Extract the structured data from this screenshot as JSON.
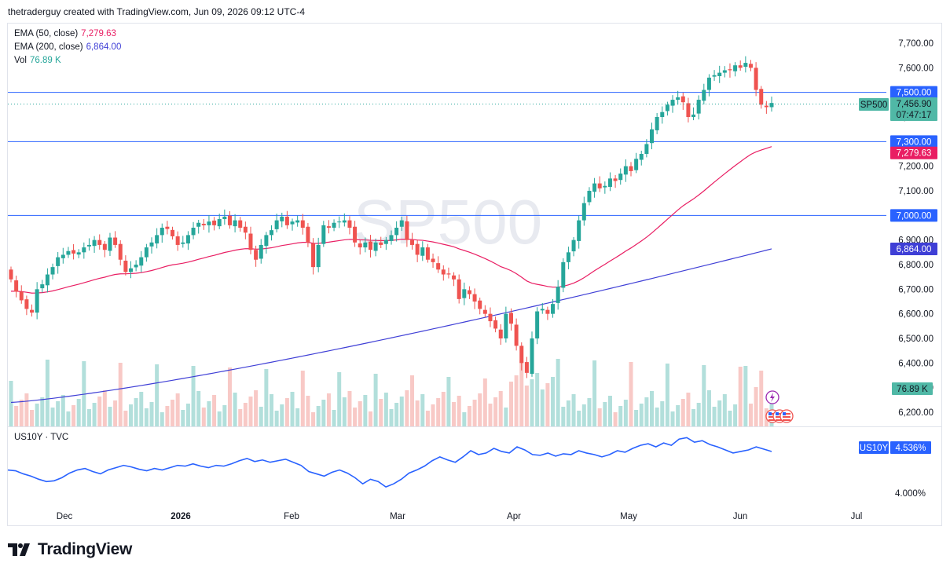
{
  "header": {
    "text": "thetraderguy created with TradingView.com, Jun 09, 2026 09:12 UTC-4"
  },
  "legend": {
    "ema50": {
      "label": "EMA (50, close)",
      "value": "7,279.63",
      "color": "#e91e63"
    },
    "ema200": {
      "label": "EMA (200, close)",
      "value": "6,864.00",
      "color": "#3f3fd6"
    },
    "vol": {
      "label": "Vol",
      "value": "76.89 K",
      "color": "#26a69a"
    }
  },
  "watermark": "SP500",
  "sub_legend": {
    "text": "US10Y · TVC"
  },
  "footer": {
    "brand": "TradingView"
  },
  "colors": {
    "up": "#26a69a",
    "down": "#ef5350",
    "vol_up": "#b2dfdb",
    "vol_down": "#f8c9c6",
    "hline": "#2962ff",
    "ema50": "#e91e63",
    "ema200": "#3f3fd6",
    "yield": "#2962ff"
  },
  "chart_data": [
    {
      "type": "candlestick",
      "symbol": "SP500",
      "y_ticks": [
        "7,700.00",
        "7,600.00",
        "7,500.00",
        "7,400.00",
        "7,300.00",
        "7,200.00",
        "7,100.00",
        "7,000.00",
        "6,900.00",
        "6,800.00",
        "6,700.00",
        "6,600.00",
        "6,500.00",
        "6,400.00",
        "6,300.00",
        "6,200.00"
      ],
      "ylim": [
        6150,
        7740
      ],
      "x_labels": [
        "Dec",
        "2026",
        "Feb",
        "Mar",
        "Apr",
        "May",
        "Jun",
        "Jul"
      ],
      "horizontal_lines": [
        {
          "value": 7500,
          "label": "7,500.00"
        },
        {
          "value": 7300,
          "label": "7,300.00"
        },
        {
          "value": 7000,
          "label": "7,000.00"
        }
      ],
      "price_tags": {
        "symbol": "SP500",
        "last": "7,456.90",
        "countdown": "07:47:17",
        "ema50": "7,279.63",
        "ema200": "6,864.00",
        "volume": "76.89 K"
      },
      "closes": [
        6740,
        6690,
        6655,
        6620,
        6605,
        6700,
        6720,
        6760,
        6790,
        6830,
        6840,
        6855,
        6845,
        6850,
        6870,
        6880,
        6900,
        6880,
        6860,
        6910,
        6880,
        6820,
        6770,
        6785,
        6800,
        6830,
        6870,
        6890,
        6920,
        6950,
        6945,
        6915,
        6880,
        6890,
        6920,
        6950,
        6970,
        6960,
        6975,
        6960,
        6985,
        6995,
        6960,
        6980,
        6950,
        6930,
        6860,
        6820,
        6880,
        6920,
        6940,
        6980,
        6995,
        6960,
        6975,
        6980,
        6950,
        6890,
        6790,
        6880,
        6960,
        6950,
        6970,
        6975,
        6980,
        6950,
        6890,
        6870,
        6890,
        6860,
        6890,
        6880,
        6900,
        6920,
        6950,
        6980,
        6900,
        6880,
        6840,
        6870,
        6820,
        6810,
        6780,
        6760,
        6760,
        6740,
        6660,
        6700,
        6680,
        6650,
        6620,
        6600,
        6570,
        6540,
        6500,
        6600,
        6560,
        6470,
        6400,
        6360,
        6500,
        6610,
        6620,
        6600,
        6640,
        6710,
        6810,
        6850,
        6900,
        6980,
        7050,
        7100,
        7130,
        7110,
        7120,
        7150,
        7140,
        7170,
        7200,
        7180,
        7230,
        7250,
        7290,
        7350,
        7400,
        7420,
        7450,
        7470,
        7480,
        7460,
        7400,
        7410,
        7470,
        7510,
        7560,
        7570,
        7580,
        7590,
        7590,
        7610,
        7600,
        7620,
        7600,
        7510,
        7450,
        7440,
        7457
      ],
      "ema50_range": [
        "6,690 (start)",
        "7,279.63 (end)"
      ],
      "ema200_range": [
        "6,240 (start)",
        "6,864.00 (end)"
      ]
    },
    {
      "type": "line",
      "symbol": "US10Y",
      "source": "TVC",
      "last_value": "4.536%",
      "y_tick_label": "4.000%",
      "values": [
        4.3,
        4.29,
        4.25,
        4.22,
        4.18,
        4.15,
        4.16,
        4.2,
        4.26,
        4.3,
        4.32,
        4.28,
        4.25,
        4.3,
        4.33,
        4.36,
        4.34,
        4.31,
        4.29,
        4.32,
        4.3,
        4.33,
        4.36,
        4.35,
        4.38,
        4.35,
        4.33,
        4.36,
        4.35,
        4.38,
        4.42,
        4.45,
        4.41,
        4.43,
        4.4,
        4.42,
        4.44,
        4.4,
        4.36,
        4.28,
        4.25,
        4.22,
        4.27,
        4.3,
        4.26,
        4.2,
        4.12,
        4.18,
        4.15,
        4.08,
        4.12,
        4.18,
        4.26,
        4.3,
        4.35,
        4.42,
        4.47,
        4.43,
        4.4,
        4.47,
        4.55,
        4.5,
        4.52,
        4.58,
        4.54,
        4.52,
        4.6,
        4.56,
        4.5,
        4.49,
        4.52,
        4.48,
        4.51,
        4.5,
        4.55,
        4.52,
        4.5,
        4.47,
        4.5,
        4.55,
        4.53,
        4.58,
        4.62,
        4.64,
        4.6,
        4.65,
        4.62,
        4.7,
        4.72,
        4.66,
        4.68,
        4.63,
        4.6,
        4.56,
        4.52,
        4.54,
        4.56,
        4.6,
        4.57,
        4.54
      ]
    }
  ]
}
